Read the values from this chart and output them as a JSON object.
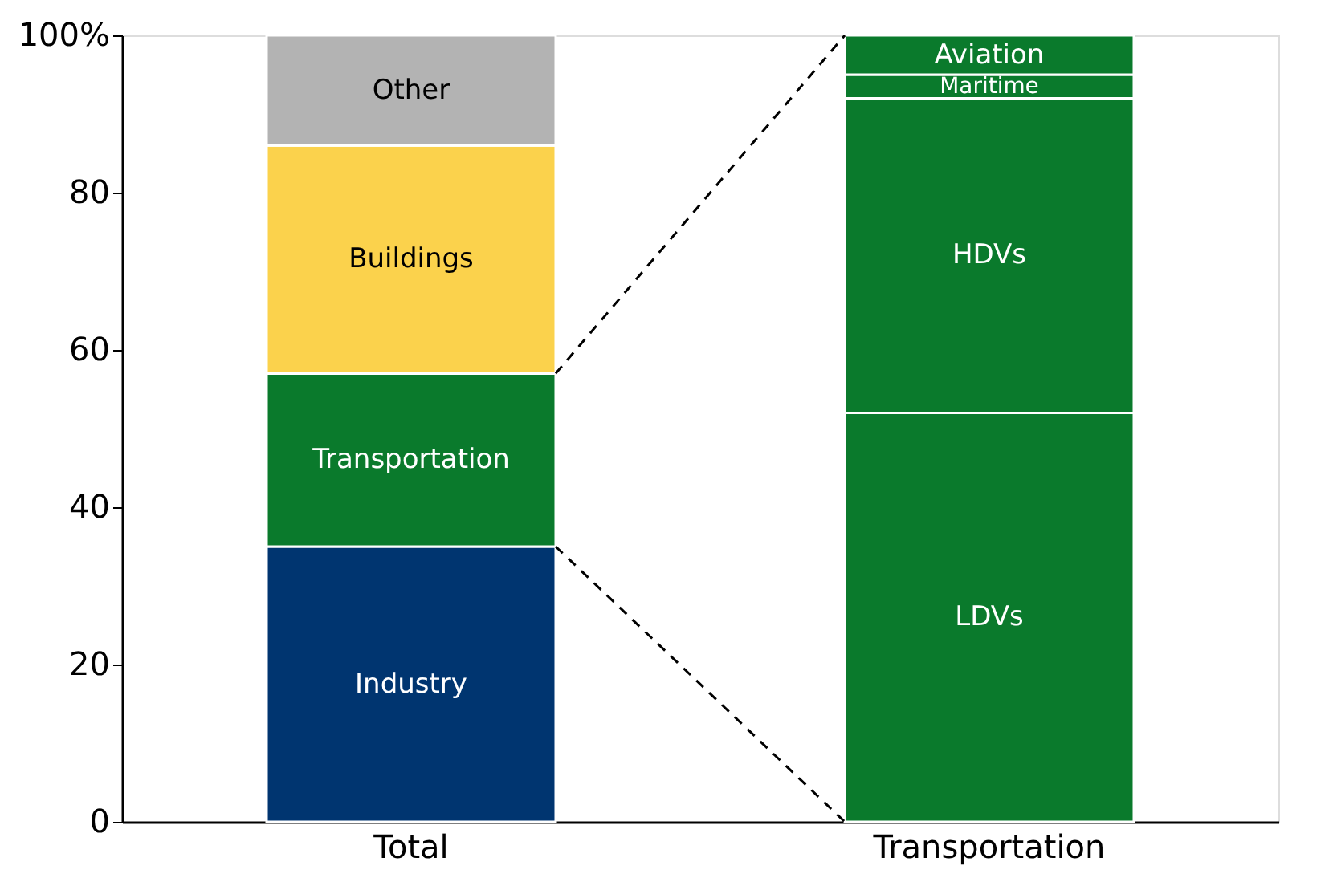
{
  "chart_data": {
    "type": "bar",
    "stacked": true,
    "categories": [
      "Total",
      "Transportation"
    ],
    "series": [
      {
        "name": "Industry",
        "color": "#003570",
        "values": [
          35,
          null
        ]
      },
      {
        "name": "Transportation",
        "color": "#0a7a2c",
        "values": [
          22,
          null
        ]
      },
      {
        "name": "Buildings",
        "color": "#fbd24c",
        "values": [
          29,
          null
        ]
      },
      {
        "name": "Other",
        "color": "#b3b3b3",
        "values": [
          14,
          null
        ]
      },
      {
        "name": "LDVs",
        "color": "#0a7a2c",
        "values": [
          null,
          52
        ]
      },
      {
        "name": "HDVs",
        "color": "#0a7a2c",
        "values": [
          null,
          40
        ]
      },
      {
        "name": "Maritime",
        "color": "#0a7a2c",
        "values": [
          null,
          3
        ]
      },
      {
        "name": "Aviation",
        "color": "#0a7a2c",
        "values": [
          null,
          5
        ]
      }
    ],
    "ylim": [
      0,
      100
    ],
    "yticks": [
      0,
      20,
      40,
      60,
      80,
      {
        "value": 100,
        "label": "100%"
      }
    ],
    "grid": false,
    "legend": false
  }
}
